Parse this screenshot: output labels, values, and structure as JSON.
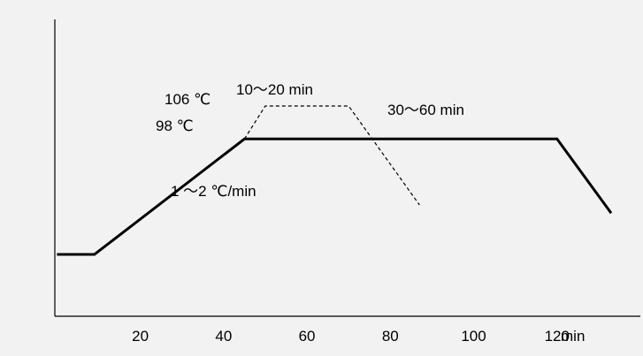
{
  "chart_data": {
    "type": "line",
    "x_unit": "min",
    "x_ticks": [
      "20",
      "40",
      "60",
      "80",
      "100",
      "120"
    ],
    "xlim": [
      -0.5,
      140
    ],
    "ylim": [
      55,
      127
    ],
    "grid": false,
    "series": [
      {
        "style": "solid",
        "x": [
          0,
          9,
          45,
          120,
          133
        ],
        "y": [
          70,
          70,
          98,
          98,
          80
        ]
      },
      {
        "style": "dashed",
        "x": [
          45,
          50,
          70,
          87
        ],
        "y": [
          98,
          106,
          106,
          82
        ]
      }
    ],
    "annotations": {
      "temp_106": "106 ℃",
      "temp_98": "98 ℃",
      "hold_short": "10～20 min",
      "hold_long": "30～60 min",
      "ramp_rate": "1 ～2 ℃/min"
    },
    "colors": {
      "line": "#000000",
      "background": "#f2f2f2"
    }
  }
}
